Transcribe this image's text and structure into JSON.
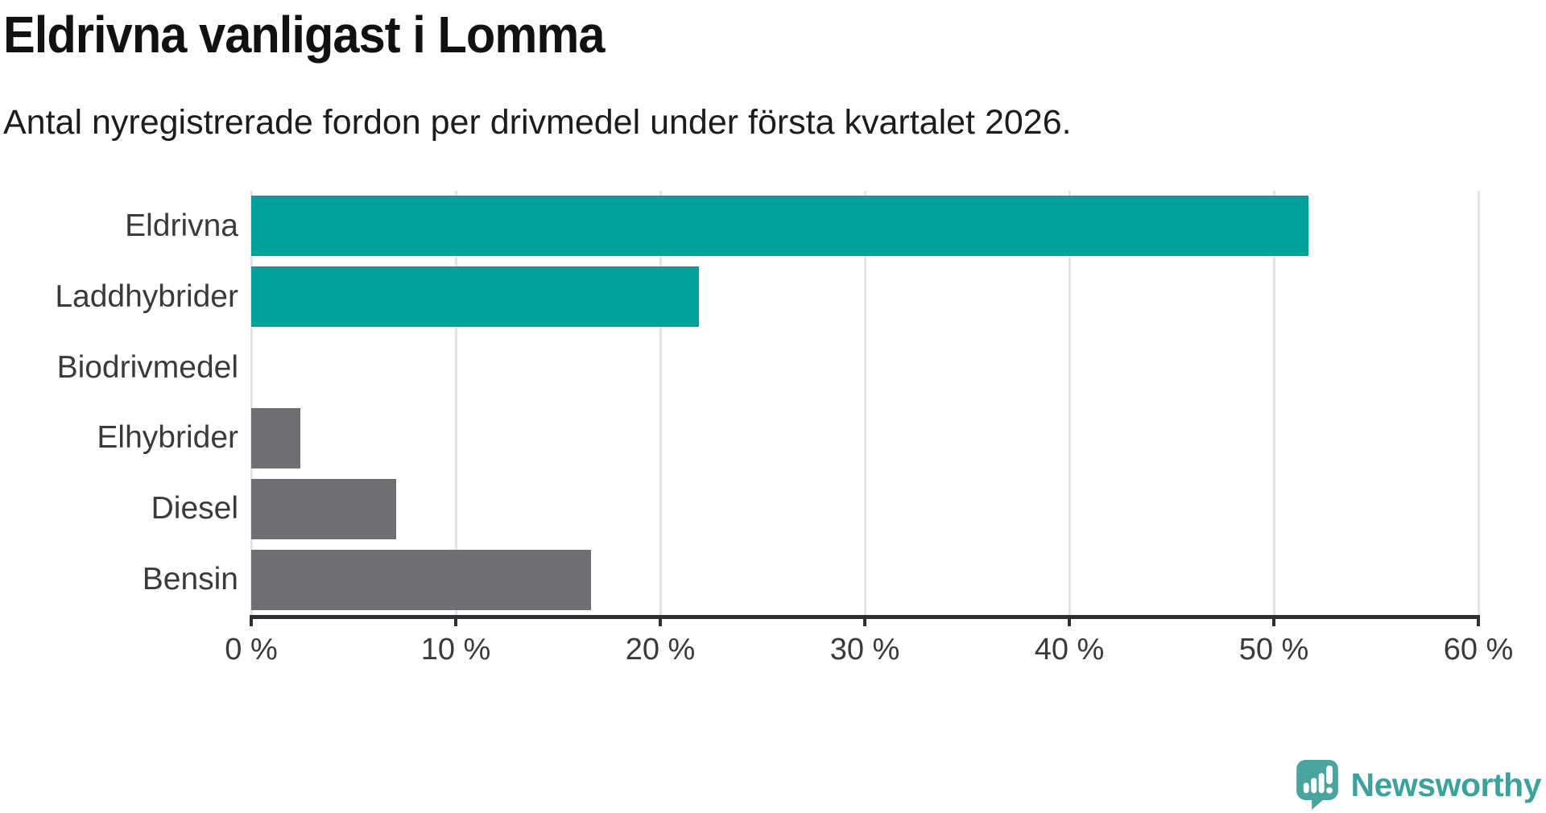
{
  "header": {
    "title": "Eldrivna vanligast i Lomma",
    "subtitle": "Antal nyregistrerade fordon per drivmedel under första kvartalet 2026."
  },
  "chart_data": {
    "type": "bar",
    "orientation": "horizontal",
    "title": "Eldrivna vanligast i Lomma",
    "subtitle": "Antal nyregistrerade fordon per drivmedel under första kvartalet 2026.",
    "categories": [
      "Eldrivna",
      "Laddhybrider",
      "Biodrivmedel",
      "Elhybrider",
      "Diesel",
      "Bensin"
    ],
    "values": [
      51.7,
      21.9,
      0,
      2.4,
      7.1,
      16.6
    ],
    "unit": "%",
    "xlim": [
      0,
      60
    ],
    "x_ticks": [
      0,
      10,
      20,
      30,
      40,
      50,
      60
    ],
    "x_tick_labels": [
      "0 %",
      "10 %",
      "20 %",
      "30 %",
      "40 %",
      "50 %",
      "60 %"
    ],
    "grid": "vertical-only",
    "legend": "none",
    "bar_colors": [
      "#00a09a",
      "#00a09a",
      "#6e6e73",
      "#6e6e73",
      "#6e6e73",
      "#6e6e73"
    ]
  },
  "colors": {
    "highlight_teal": "#00a09a",
    "bar_gray": "#6e6e73",
    "gridline": "#e4e4e4",
    "axis": "#2f2f2f",
    "axis_label": "#3a3a3a",
    "title_text": "#111111",
    "logo_teal": "#3da29b",
    "logo_icon_teal": "#4aa5a0",
    "background": "#ffffff"
  },
  "branding": {
    "logo_text": "Newsworthy",
    "logo_icon": "newsworthy-speech-bubble-bar-chart-icon"
  }
}
